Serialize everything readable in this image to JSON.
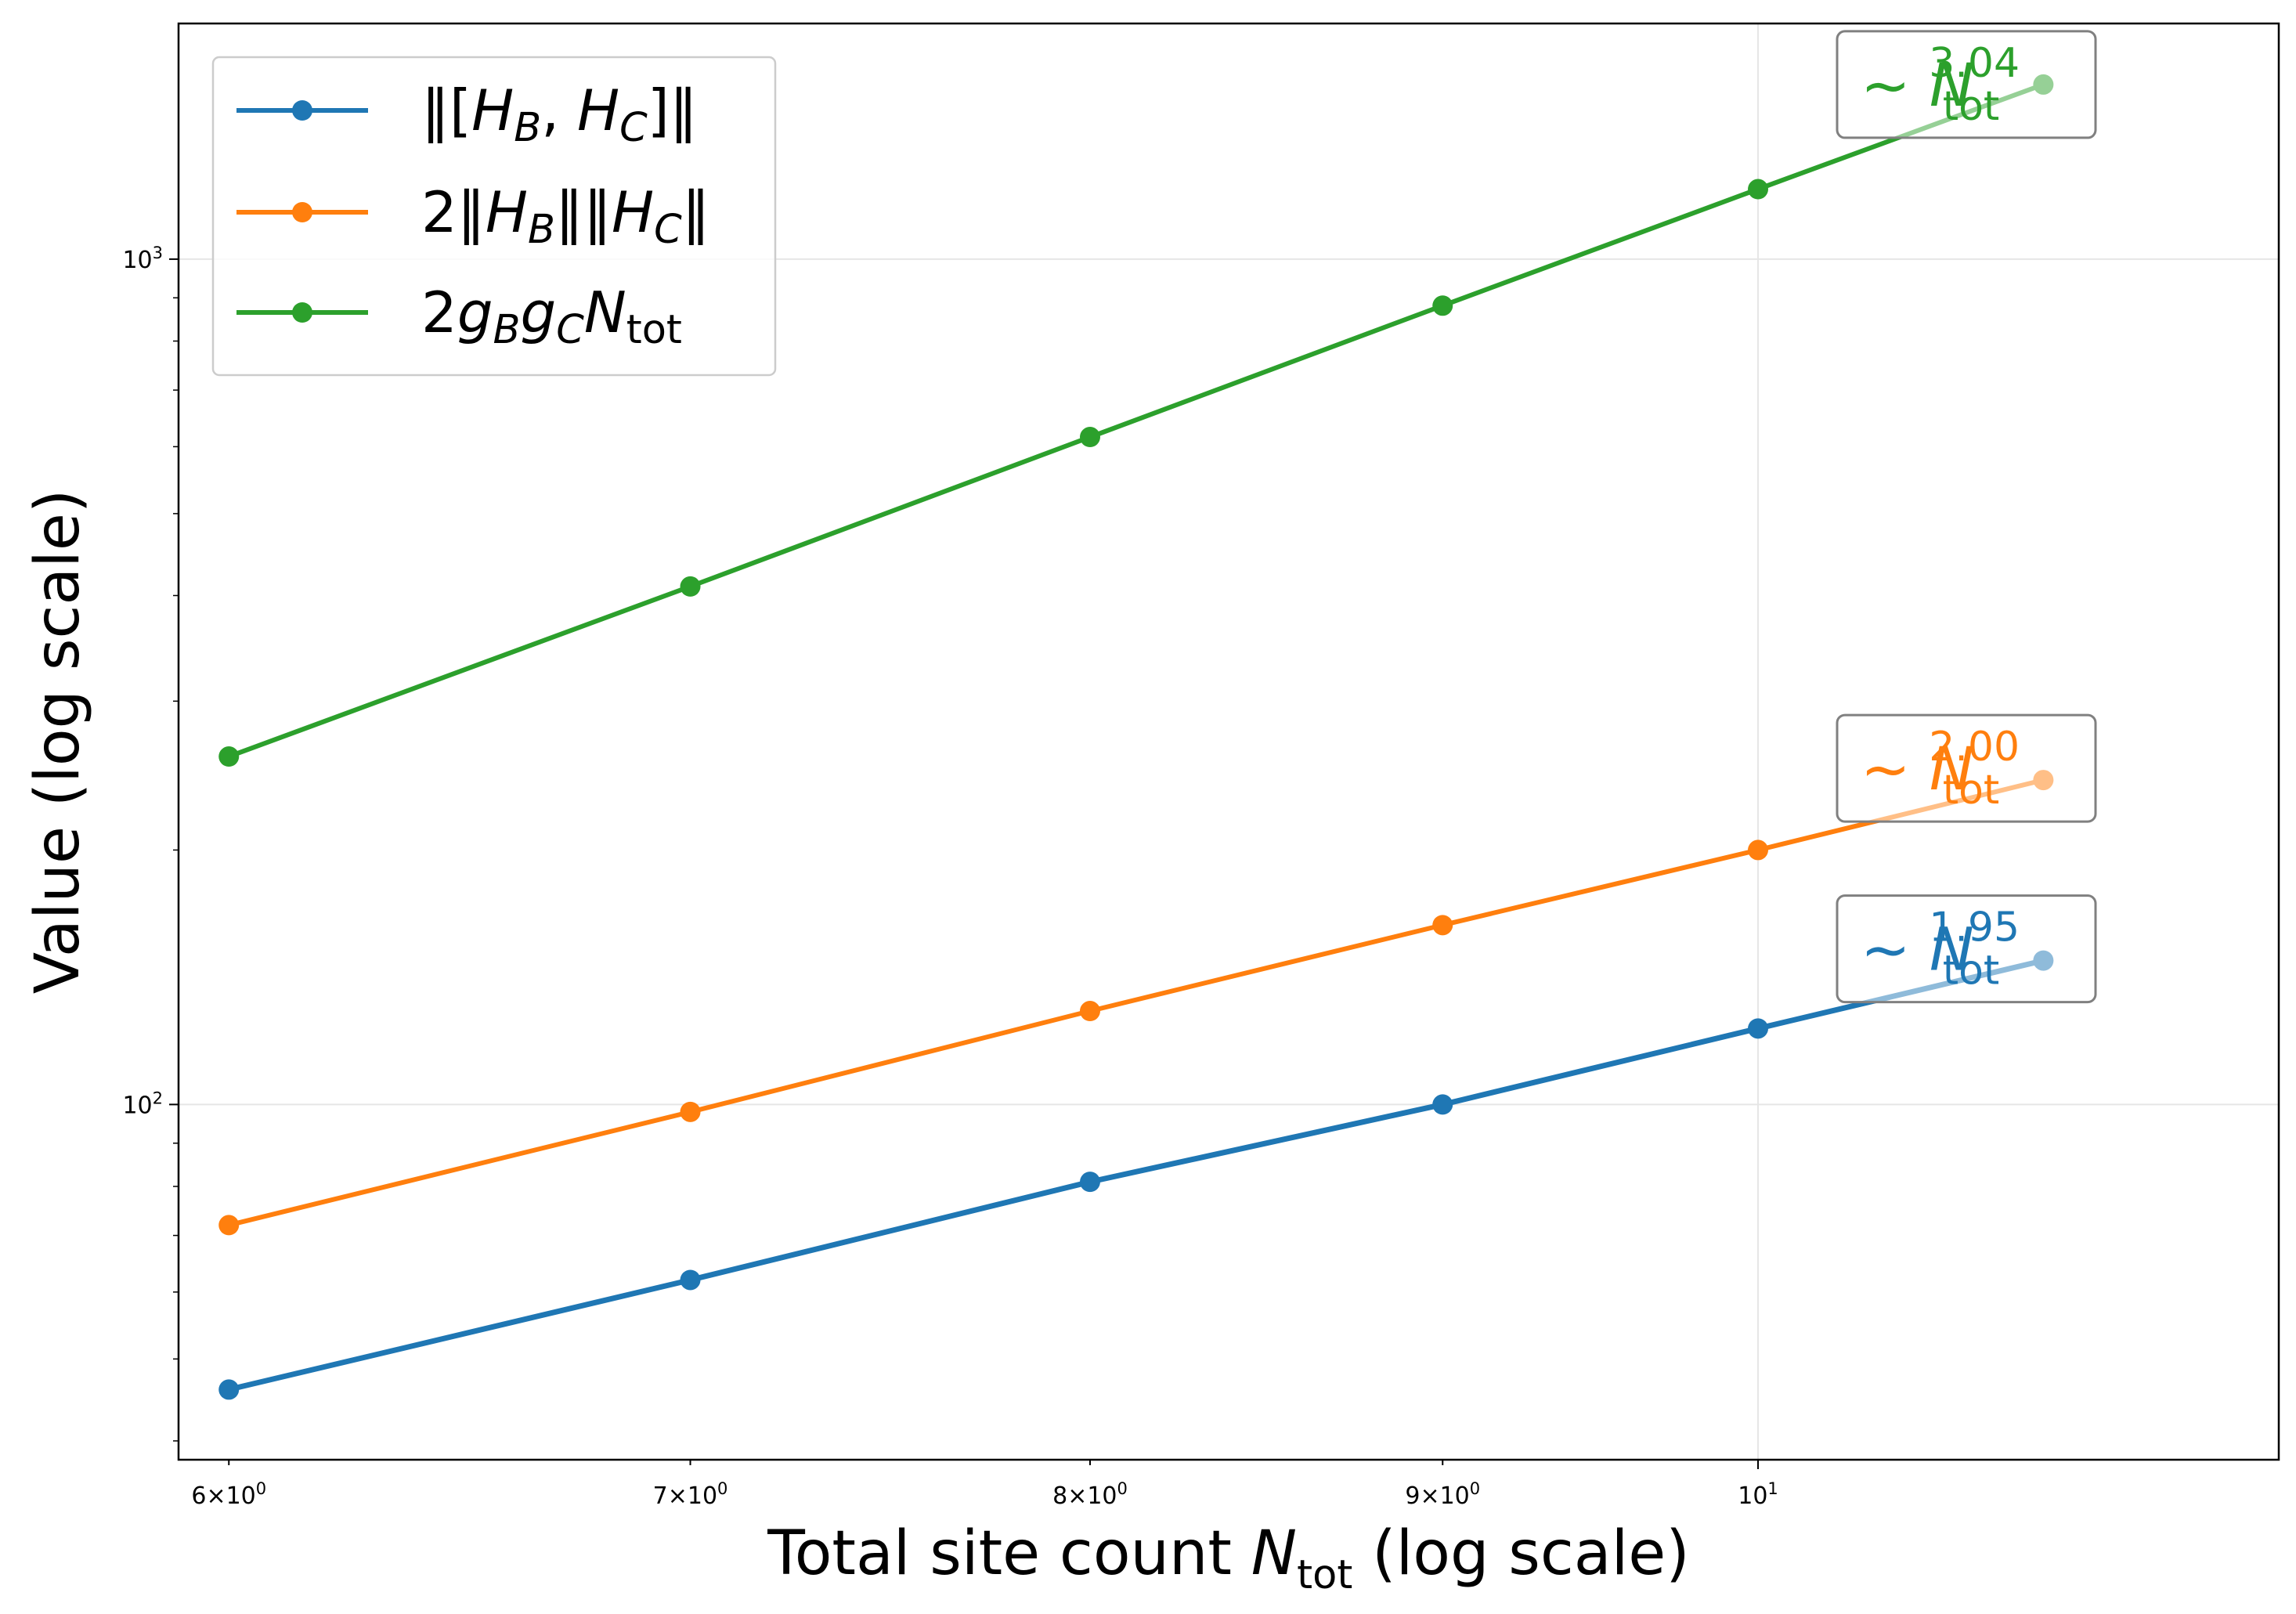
{
  "chart_data": {
    "type": "line",
    "x_scale": "log",
    "y_scale": "log",
    "x": [
      6,
      7,
      8,
      9,
      10,
      11
    ],
    "xlim": [
      5.9,
      11.9
    ],
    "ylim": [
      38,
      1900
    ],
    "grid": true,
    "legend_position": "top-left",
    "xlabel": {
      "main": "Total site count ",
      "var": "N",
      "sub": "tot",
      "tail": " (log scale)"
    },
    "ylabel": "Value (log scale)",
    "x_ticks": [
      {
        "value": 6,
        "coef": "6",
        "exp": "0"
      },
      {
        "value": 7,
        "coef": "7",
        "exp": "0"
      },
      {
        "value": 8,
        "coef": "8",
        "exp": "0"
      },
      {
        "value": 9,
        "coef": "9",
        "exp": "0"
      },
      {
        "value": 10,
        "coef": "",
        "exp": "1"
      }
    ],
    "y_ticks": [
      {
        "value": 100,
        "exp": "2"
      },
      {
        "value": 1000,
        "exp": "3"
      }
    ],
    "series": [
      {
        "name": "‖[H_B, H_C]‖",
        "color": "#1f77b4",
        "values": [
          46,
          62,
          81,
          100,
          123,
          148
        ],
        "slope_label": "1.95"
      },
      {
        "name": "2‖H_B‖‖H_C‖",
        "color": "#ff7f0e",
        "values": [
          72,
          98,
          129,
          163,
          200,
          242
        ],
        "slope_label": "2.00"
      },
      {
        "name": "2g_Bg_CN_tot",
        "color": "#2ca02c",
        "values": [
          258,
          410,
          616,
          881,
          1210,
          1609
        ],
        "slope_label": "3.04"
      }
    ],
    "slope_prefix": "~ ",
    "slope_var": "N",
    "slope_sub": "tot"
  }
}
